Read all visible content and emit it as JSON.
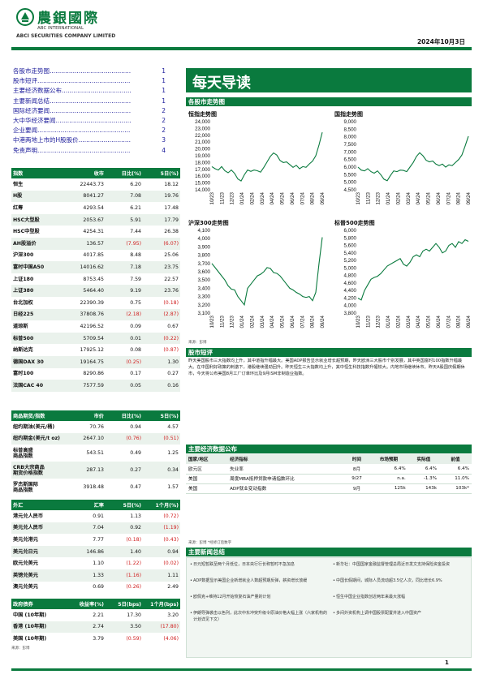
{
  "header": {
    "logo_cn": "農銀國際",
    "logo_en1": "ABC INTERNATIONAL",
    "logo_en2": "ABCI SECURITIES COMPANY LIMITED",
    "date": "2024年10月3日"
  },
  "toc": [
    {
      "label": "各股市走势图",
      "page": "1"
    },
    {
      "label": "股市短评",
      "page": "1"
    },
    {
      "label": "主要经济数据公布",
      "page": "1"
    },
    {
      "label": "主要新闻总结",
      "page": "1"
    },
    {
      "label": "国际经济要闻",
      "page": "2"
    },
    {
      "label": "大中华经济要闻",
      "page": "2"
    },
    {
      "label": "企业要闻",
      "page": "2"
    },
    {
      "label": "中港两地上市的H股股价",
      "page": "3"
    },
    {
      "label": "免责声明",
      "page": "4"
    }
  ],
  "colors": {
    "brand_green": "#0a7a3e",
    "negative": "#d01e1e",
    "chart_line": "#0a7a3e"
  },
  "index_table": {
    "headers": [
      "指数",
      "收市",
      "日比(%)",
      "5日(%)"
    ],
    "rows": [
      [
        "恒生",
        "22443.73",
        "6.20",
        "18.12"
      ],
      [
        "H股",
        "8041.27",
        "7.08",
        "19.76"
      ],
      [
        "红筹",
        "4293.54",
        "6.21",
        "17.48"
      ],
      [
        "HSC大型股",
        "2053.67",
        "5.91",
        "17.79"
      ],
      [
        "HSC中型股",
        "4254.31",
        "7.44",
        "26.38"
      ],
      [
        "AH股溢价",
        "136.57",
        "(7.95)",
        "(6.07)"
      ],
      [
        "沪深300",
        "4017.85",
        "8.48",
        "25.06"
      ],
      [
        "富时中国A50",
        "14016.62",
        "7.18",
        "23.75"
      ],
      [
        "上证180",
        "8753.45",
        "7.59",
        "22.57"
      ],
      [
        "上证380",
        "5464.40",
        "9.19",
        "23.76"
      ],
      [
        "台北加权",
        "22390.39",
        "0.75",
        "(0.18)"
      ],
      [
        "日经225",
        "37808.76",
        "(2.18)",
        "(2.87)"
      ],
      [
        "道琼斯",
        "42196.52",
        "0.09",
        "0.67"
      ],
      [
        "标普500",
        "5709.54",
        "0.01",
        "(0.22)"
      ],
      [
        "纳斯达克",
        "17925.12",
        "0.08",
        "(0.87)"
      ],
      [
        "德国DAX 30",
        "19164.75",
        "(0.25)",
        "1.30"
      ],
      [
        "富时100",
        "8290.86",
        "0.17",
        "0.27"
      ],
      [
        "法国CAC 40",
        "7577.59",
        "0.05",
        "0.16"
      ]
    ]
  },
  "commodity_table": {
    "headers": [
      "商品期货/指数",
      "市价",
      "日比(%)",
      "5日(%)"
    ],
    "rows": [
      [
        "纽约期油(美元/桶)",
        "70.76",
        "0.94",
        "4.57"
      ],
      [
        "纽约期金(美元/t oz)",
        "2647.10",
        "(0.76)",
        "(0.51)"
      ],
      [
        "标普高盛\n商品指数",
        "543.51",
        "0.49",
        "1.25"
      ],
      [
        "CRB大宗商品\n期货价格指数",
        "287.13",
        "0.27",
        "0.34"
      ],
      [
        "罗杰斯国际\n商品指数",
        "3918.48",
        "0.47",
        "1.57"
      ]
    ]
  },
  "fx_table": {
    "headers": [
      "外汇",
      "汇率",
      "5日(%)",
      "1个月(%)"
    ],
    "rows": [
      [
        "港元兑人民币",
        "0.91",
        "1.13",
        "(0.72)"
      ],
      [
        "美元兑人民币",
        "7.04",
        "0.92",
        "(1.19)"
      ],
      [
        "美元兑港元",
        "7.77",
        "(0.18)",
        "(0.43)"
      ],
      [
        "美元兑日元",
        "146.86",
        "1.40",
        "0.94"
      ],
      [
        "欧元兑美元",
        "1.10",
        "(1.22)",
        "(0.02)"
      ],
      [
        "英镑兑美元",
        "1.33",
        "(1.16)",
        "1.11"
      ],
      [
        "澳元兑美元",
        "0.69",
        "(0.26)",
        "2.49"
      ]
    ]
  },
  "bond_table": {
    "headers": [
      "政府债券",
      "收益率(%)",
      "5日(bps)",
      "1个月(bps)"
    ],
    "rows": [
      [
        "中国 (10年期)",
        "2.21",
        "17.30",
        "3.20"
      ],
      [
        "香港 (10年期)",
        "2.74",
        "3.50",
        "(17.80)"
      ],
      [
        "美国 (10年期)",
        "3.79",
        "(0.59)",
        "(4.06)"
      ]
    ],
    "source": "来源：彭博"
  },
  "main_title": "每天导读",
  "charts_section_title": "各股市走势图",
  "x_ticks": [
    "10/23",
    "11/23",
    "12/23",
    "01/24",
    "02/24",
    "03/24",
    "04/24",
    "05/24",
    "06/24",
    "07/24",
    "08/24",
    "09/24"
  ],
  "chart_data": [
    {
      "type": "line",
      "title": "恒指走势图",
      "ylim": [
        14000,
        24000
      ],
      "yticks": [
        "24,000",
        "23,000",
        "22,000",
        "21,000",
        "20,000",
        "19,000",
        "18,000",
        "17,000",
        "16,000",
        "15,000",
        "14,000"
      ],
      "values": [
        17400,
        17100,
        16900,
        17400,
        16800,
        16500,
        16900,
        16400,
        15600,
        15300,
        16200,
        16900,
        16700,
        16900,
        16800,
        16600,
        17300,
        18100,
        18900,
        19400,
        19100,
        18300,
        18000,
        18100,
        17700,
        17300,
        17600,
        17100,
        17400,
        17300,
        17800,
        18200,
        19000,
        20600,
        22443
      ]
    },
    {
      "type": "line",
      "title": "国指走势图",
      "ylim": [
        4500,
        9000
      ],
      "yticks": [
        "9,000",
        "8,500",
        "8,000",
        "7,500",
        "7,000",
        "6,500",
        "6,000",
        "5,500",
        "5,000",
        "4,500"
      ],
      "values": [
        6000,
        5800,
        5750,
        5900,
        5700,
        5600,
        5750,
        5500,
        5200,
        5100,
        5450,
        5750,
        5700,
        5800,
        5780,
        5700,
        6000,
        6300,
        6700,
        6950,
        6750,
        6450,
        6350,
        6400,
        6200,
        6100,
        6200,
        6000,
        6150,
        6100,
        6300,
        6500,
        6800,
        7400,
        8041
      ]
    },
    {
      "type": "line",
      "title": "沪深300走势图",
      "ylim": [
        3100,
        4100
      ],
      "yticks": [
        "4,100",
        "4,000",
        "3,900",
        "3,800",
        "3,700",
        "3,600",
        "3,500",
        "3,400",
        "3,300",
        "3,200",
        "3,100"
      ],
      "values": [
        3700,
        3650,
        3600,
        3550,
        3500,
        3430,
        3390,
        3380,
        3300,
        3250,
        3200,
        3400,
        3450,
        3500,
        3550,
        3570,
        3600,
        3650,
        3640,
        3590,
        3580,
        3550,
        3500,
        3450,
        3400,
        3380,
        3350,
        3330,
        3300,
        3290,
        3300,
        3250,
        3350,
        3700,
        4017
      ]
    },
    {
      "type": "line",
      "title": "标普500走势图",
      "ylim": [
        3800,
        6000
      ],
      "yticks": [
        "6,000",
        "5,800",
        "5,600",
        "5,400",
        "5,200",
        "5,000",
        "4,800",
        "4,600",
        "4,400",
        "4,200",
        "4,000",
        "3,800"
      ],
      "values": [
        4200,
        4150,
        4400,
        4550,
        4700,
        4750,
        4780,
        4850,
        4950,
        5050,
        5100,
        5150,
        5200,
        5250,
        5100,
        5050,
        5150,
        5300,
        5350,
        5300,
        5450,
        5500,
        5450,
        5550,
        5650,
        5550,
        5400,
        5450,
        5600,
        5650,
        5550,
        5700,
        5650,
        5750,
        5709
      ]
    }
  ],
  "chart_source": "来源：彭博",
  "market_comment": {
    "title": "股市短评",
    "text": "昨天美国股市三大指数均上升，其中道指升幅最大。美国ADP报告显示就业增长超预期，昨天欧洲三大股市个别发展，其中英国富时100指数升幅最大。在中国利好政策的刺激下，港股继续强劲回升。昨天恒生三大指数均上升，其中恒生科技指数升幅较大。内地市场继续休市。昨天A股国庆假期休市，今天将公布美国8月工厂订单环比及9月ISM非制造业指数。"
  },
  "econ_data": {
    "title": "主要经济数据公布",
    "headers": [
      "国家/地区",
      "经济指标",
      "时间",
      "市场预期",
      "实际值",
      "前值"
    ],
    "rows": [
      [
        "欧元区",
        "失业率",
        "8月",
        "6.4%",
        "6.4%",
        "6.4%"
      ],
      [
        "美国",
        "周度MBA抵押贷款申请指数环比",
        "9/27",
        "n.a.",
        "-1.3%",
        "11.0%"
      ],
      [
        "美国",
        "ADP就业变动指数",
        "9月",
        "125k",
        "143k",
        "103k*"
      ]
    ],
    "source": "来源：彭博   *经修订后数字"
  },
  "news": {
    "title": "主要新闻总结",
    "left": [
      "日元短暂跌至两个月低位，日本央行行长称暂时不急加息",
      "ADP数据显示美国企业新增就业人数超预期反弹，薪资增长放缓",
      "欧佩克+维持12月开始恢复石油产量的计划",
      "伊朗导弹袭击以色列，此次中东冲突升级令原油价格大幅上涨（六家机构的计划详见下文）"
    ],
    "right": [
      "新华社：中国国家金融监督管理总局近日发文支持保险资金投资",
      "中国长假期间，城际人员流动超3.5亿人次，同比增长6.9%",
      "恒生中国企业指数创近两年来最大涨幅",
      "多间外资机构上调中国股票配置并进入中国资产"
    ]
  },
  "footer_page": "1"
}
